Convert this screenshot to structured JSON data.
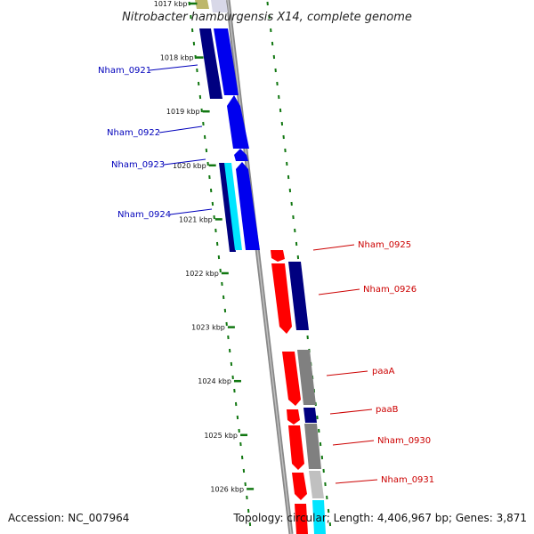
{
  "title": "Nitrobacter hamburgensis X14, complete genome",
  "accession_text": "Accession: NC_007964",
  "summary_text": "Topology: circular; Length: 4,406,967 bp; Genes: 3,871",
  "ticks": [
    {
      "label": "1017 kbp",
      "kbp": 1017
    },
    {
      "label": "1018 kbp",
      "kbp": 1018
    },
    {
      "label": "1019 kbp",
      "kbp": 1019
    },
    {
      "label": "1020 kbp",
      "kbp": 1020
    },
    {
      "label": "1021 kbp",
      "kbp": 1021
    },
    {
      "label": "1022 kbp",
      "kbp": 1022
    },
    {
      "label": "1023 kbp",
      "kbp": 1023
    },
    {
      "label": "1024 kbp",
      "kbp": 1024
    },
    {
      "label": "1025 kbp",
      "kbp": 1025
    },
    {
      "label": "1026 kbp",
      "kbp": 1026
    }
  ],
  "colors": {
    "reverse_strand_label": "#0000bb",
    "forward_strand_label": "#cc0000",
    "backbone": "#888888",
    "dots": "#117711",
    "blue": "#0000ee",
    "navy": "#000080",
    "cyan": "#00e5ff",
    "red": "#ff0000",
    "grey": "#808080",
    "lightgrey": "#c0c0c0",
    "olive": "#bdb76b"
  },
  "gene_labels": [
    {
      "text": "Nham_0921",
      "strand": "reverse"
    },
    {
      "text": "Nham_0922",
      "strand": "reverse"
    },
    {
      "text": "Nham_0923",
      "strand": "reverse"
    },
    {
      "text": "Nham_0924",
      "strand": "reverse"
    },
    {
      "text": "Nham_0925",
      "strand": "forward"
    },
    {
      "text": "Nham_0926",
      "strand": "forward"
    },
    {
      "text": "paaA",
      "strand": "forward"
    },
    {
      "text": "paaB",
      "strand": "forward"
    },
    {
      "text": "Nham_0930",
      "strand": "forward"
    },
    {
      "text": "Nham_0931",
      "strand": "forward"
    }
  ]
}
